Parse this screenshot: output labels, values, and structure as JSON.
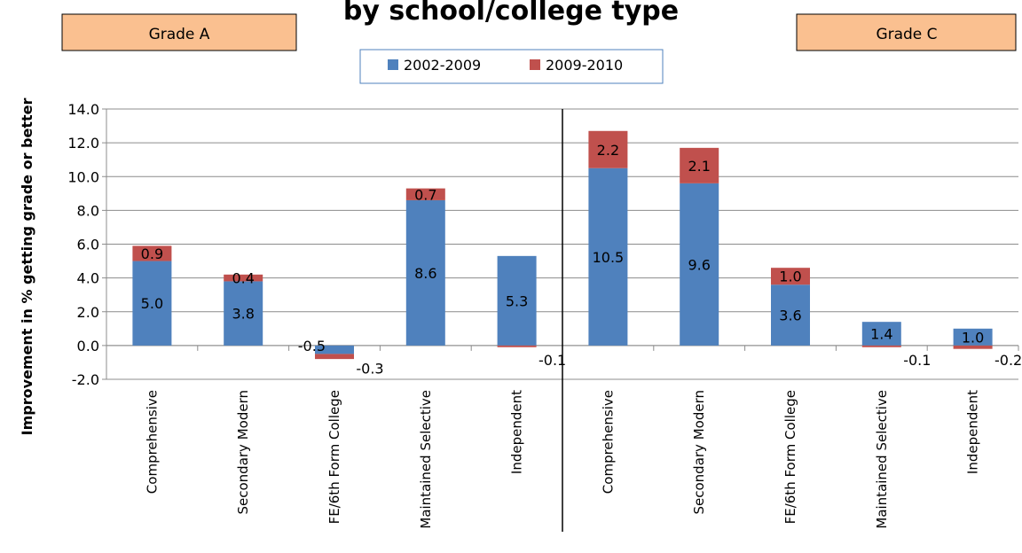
{
  "title": "by school/college type",
  "panels": [
    {
      "label": "Grade A"
    },
    {
      "label": "Grade C"
    }
  ],
  "chart_data": {
    "type": "bar",
    "stacked": true,
    "title": "by school/college type",
    "ylabel": "Improvement in % getting grade or better",
    "ylim": [
      -2.0,
      14.0
    ],
    "yticks": [
      "14.0",
      "12.0",
      "10.0",
      "8.0",
      "6.0",
      "4.0",
      "2.0",
      "0.0",
      "-2.0"
    ],
    "grid": true,
    "legend_position": "top-center",
    "groups": [
      "Grade A",
      "Grade C"
    ],
    "categories": [
      "Comprehensive",
      "Secondary Modern",
      "FE/6th Form College",
      "Maintained Selective",
      "Independent",
      "Comprehensive",
      "Secondary Modern",
      "FE/6th Form College",
      "Maintained Selective",
      "Independent"
    ],
    "series": [
      {
        "name": "2002-2009",
        "color": "#4f81bd",
        "values": [
          5.0,
          3.8,
          -0.5,
          8.6,
          5.3,
          10.5,
          9.6,
          3.6,
          1.4,
          1.0
        ],
        "labels": [
          "5.0",
          "3.8",
          "-0.5",
          "8.6",
          "5.3",
          "10.5",
          "9.6",
          "3.6",
          "1.4",
          "1.0"
        ]
      },
      {
        "name": "2009-2010",
        "color": "#c0504d",
        "values": [
          0.9,
          0.4,
          -0.3,
          0.7,
          -0.1,
          2.2,
          2.1,
          1.0,
          -0.1,
          -0.2
        ],
        "labels": [
          "0.9",
          "0.4",
          "-0.3",
          "0.7",
          "-0.1",
          "2.2",
          "2.1",
          "1.0",
          "-0.1",
          "-0.2"
        ]
      }
    ]
  }
}
